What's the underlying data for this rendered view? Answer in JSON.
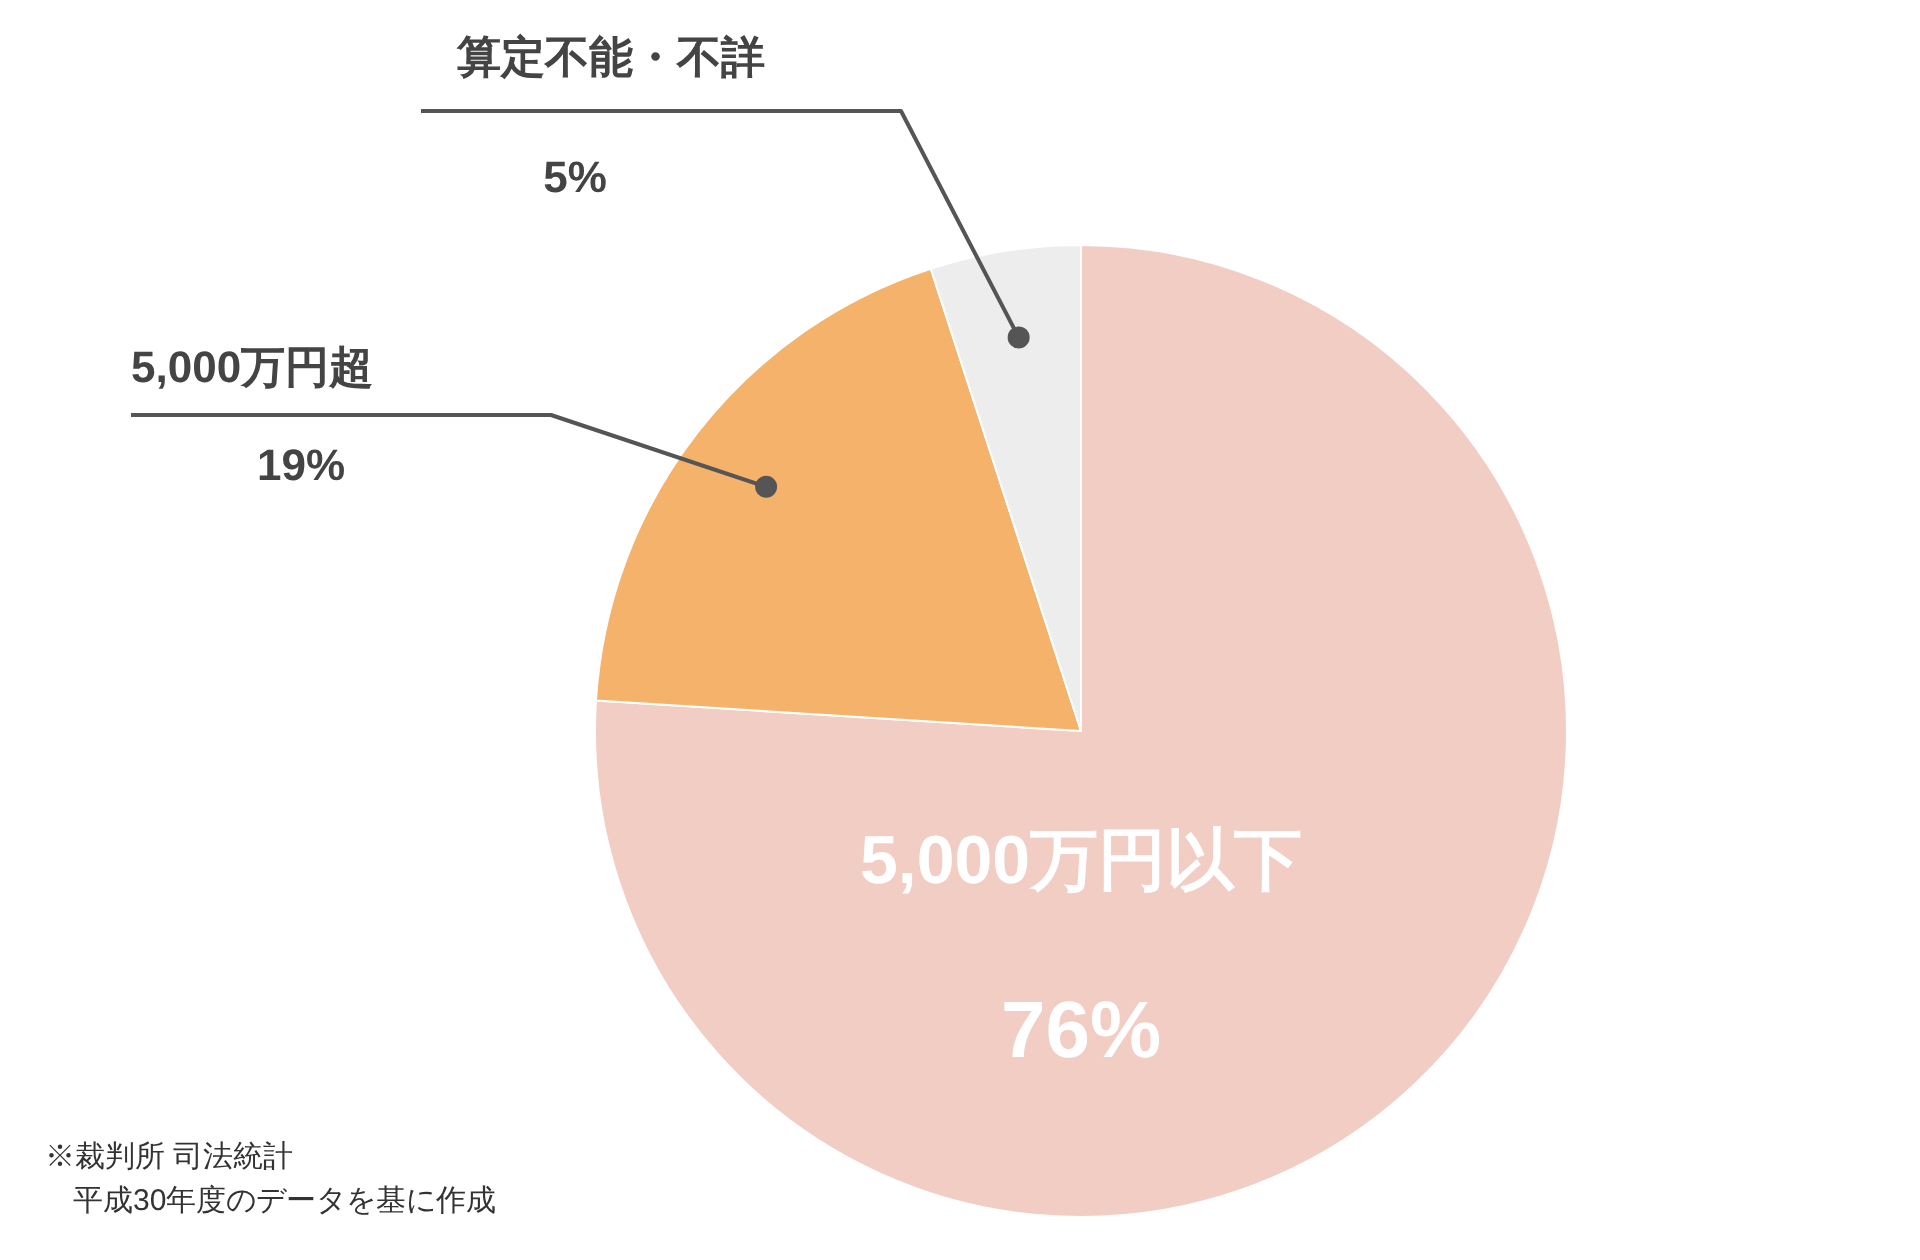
{
  "chart_data": {
    "type": "pie",
    "categories": [
      "5,000万円以下",
      "5,000万円超",
      "算定不能・不詳"
    ],
    "values": [
      76,
      19,
      5
    ],
    "colors": [
      "#f2cdc4",
      "#f4b26b",
      "#ededed"
    ],
    "value_labels": [
      "76%",
      "19%",
      "5%"
    ],
    "annotations": [
      "※裁判所 司法統計",
      "平成30年度のデータを基に作成"
    ]
  }
}
